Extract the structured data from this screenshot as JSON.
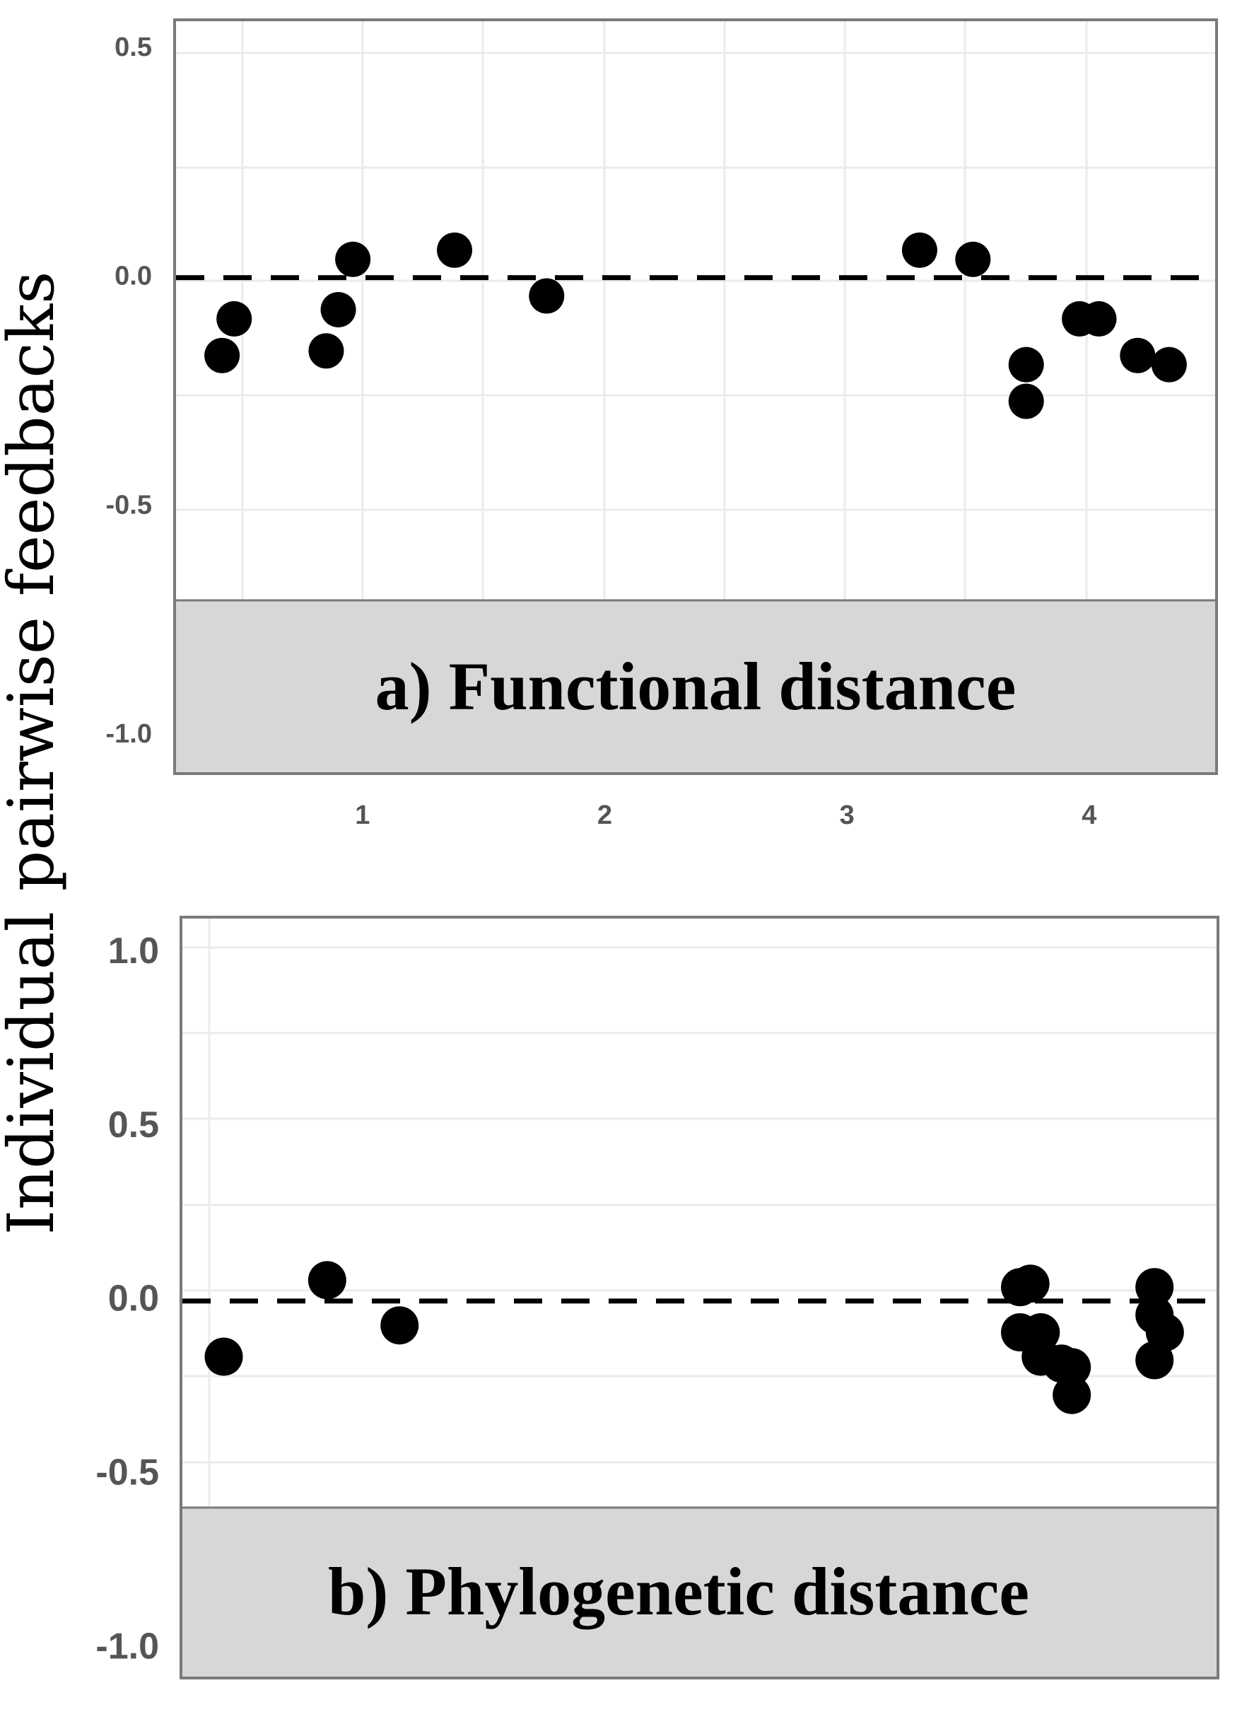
{
  "y_axis_label": "Individual pairwise feedbacks",
  "chart_data": [
    {
      "type": "scatter",
      "panel_label": "a) Functional distance",
      "ylabel": "Individual pairwise feedbacks",
      "xlabel": "",
      "xlim": [
        0.23,
        4.52
      ],
      "ylim": [
        -1.08,
        0.56
      ],
      "x_ticks": [
        1,
        2,
        3,
        4
      ],
      "x_tick_labels": [
        "1",
        "2",
        "3",
        "4"
      ],
      "y_ticks": [
        0.5,
        0.0,
        -0.5,
        -1.0
      ],
      "y_tick_labels": [
        "0.5",
        "0.0",
        "-0.5",
        "-1.0"
      ],
      "reference_line_y": 0,
      "grid": true,
      "points": [
        {
          "x": 0.42,
          "y": -0.17
        },
        {
          "x": 0.47,
          "y": -0.09
        },
        {
          "x": 0.85,
          "y": -0.16
        },
        {
          "x": 0.9,
          "y": -0.07
        },
        {
          "x": 0.96,
          "y": 0.04
        },
        {
          "x": 1.38,
          "y": 0.06
        },
        {
          "x": 1.76,
          "y": -0.04
        },
        {
          "x": 3.3,
          "y": 0.06
        },
        {
          "x": 3.52,
          "y": 0.04
        },
        {
          "x": 3.74,
          "y": -0.19
        },
        {
          "x": 3.74,
          "y": -0.27
        },
        {
          "x": 3.96,
          "y": -0.09
        },
        {
          "x": 4.04,
          "y": -0.09
        },
        {
          "x": 4.2,
          "y": -0.17
        },
        {
          "x": 4.33,
          "y": -0.19
        }
      ]
    },
    {
      "type": "scatter",
      "panel_label": "b) Phylogenetic distance",
      "ylabel": "Individual pairwise feedbacks",
      "xlabel": "",
      "xlim": [
        0.0,
        1.0
      ],
      "ylim": [
        -1.08,
        1.1
      ],
      "x_ticks": [],
      "x_tick_labels": [],
      "y_ticks": [
        1.0,
        0.5,
        0.0,
        -0.5,
        -1.0
      ],
      "y_tick_labels": [
        "1.0",
        "0.5",
        "0.0",
        "-0.5",
        "-1.0"
      ],
      "reference_line_y": 0,
      "grid": true,
      "points": [
        {
          "x": 0.04,
          "y": -0.16
        },
        {
          "x": 0.14,
          "y": 0.06
        },
        {
          "x": 0.21,
          "y": -0.07
        },
        {
          "x": 0.81,
          "y": 0.04
        },
        {
          "x": 0.82,
          "y": 0.05
        },
        {
          "x": 0.81,
          "y": -0.09
        },
        {
          "x": 0.83,
          "y": -0.09
        },
        {
          "x": 0.83,
          "y": -0.16
        },
        {
          "x": 0.85,
          "y": -0.18
        },
        {
          "x": 0.86,
          "y": -0.19
        },
        {
          "x": 0.86,
          "y": -0.27
        },
        {
          "x": 0.94,
          "y": 0.04
        },
        {
          "x": 0.94,
          "y": -0.04
        },
        {
          "x": 0.95,
          "y": -0.09
        },
        {
          "x": 0.94,
          "y": -0.17
        }
      ]
    }
  ]
}
